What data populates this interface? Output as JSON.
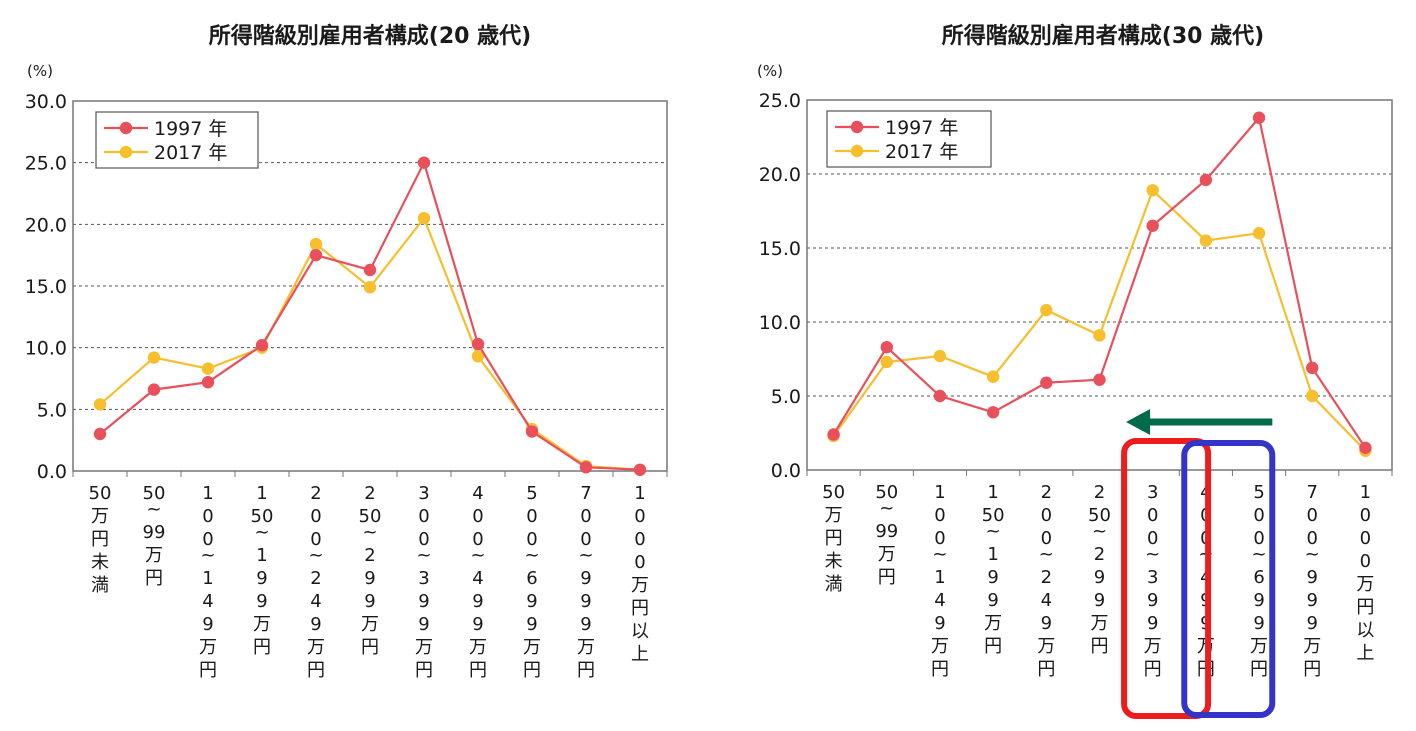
{
  "colors": {
    "series_1997": "#e8505b",
    "series_2017": "#f7be2e",
    "arrow": "#006b4a",
    "highlight_red": "#ee1c1c",
    "highlight_blue": "#3434c8",
    "gridline": "#555555"
  },
  "chart_data": [
    {
      "type": "line",
      "title": "所得階級別雇用者構成(20 歳代)",
      "unit": "(%)",
      "ylim": [
        0,
        30
      ],
      "yticks": [
        "0.0",
        "5.0",
        "10.0",
        "15.0",
        "20.0",
        "25.0",
        "30.0"
      ],
      "grid": true,
      "legend_position": "top-left",
      "categories": [
        "50万円未満",
        "50~99万円",
        "100~149万円",
        "150~199万円",
        "200~249万円",
        "250~299万円",
        "300~399万円",
        "400~499万円",
        "500~699万円",
        "700~999万円",
        "1000万円以上"
      ],
      "series": [
        {
          "name": "1997 年",
          "values": [
            3.0,
            6.6,
            7.2,
            10.2,
            17.5,
            16.3,
            25.0,
            10.3,
            3.2,
            0.3,
            0.1
          ]
        },
        {
          "name": "2017 年",
          "values": [
            5.4,
            9.2,
            8.3,
            10.0,
            18.4,
            14.9,
            20.5,
            9.3,
            3.4,
            0.4,
            0.1
          ]
        }
      ]
    },
    {
      "type": "line",
      "title": "所得階級別雇用者構成(30 歳代)",
      "unit": "(%)",
      "ylim": [
        0,
        25
      ],
      "yticks": [
        "0.0",
        "5.0",
        "10.0",
        "15.0",
        "20.0",
        "25.0"
      ],
      "grid": true,
      "legend_position": "top-left",
      "categories": [
        "50万円未満",
        "50~99万円",
        "100~149万円",
        "150~199万円",
        "200~249万円",
        "250~299万円",
        "300~399万円",
        "400~499万円",
        "500~699万円",
        "700~999万円",
        "1000万円以上"
      ],
      "series": [
        {
          "name": "1997 年",
          "values": [
            2.4,
            8.3,
            5.0,
            3.9,
            5.9,
            6.1,
            16.5,
            19.6,
            23.8,
            6.9,
            1.5
          ]
        },
        {
          "name": "2017 年",
          "values": [
            2.3,
            7.3,
            7.7,
            6.3,
            10.8,
            9.1,
            18.9,
            15.5,
            16.0,
            5.0,
            1.3
          ]
        }
      ],
      "annotations": [
        {
          "kind": "arrow",
          "direction": "left",
          "color": "#006b4a"
        },
        {
          "kind": "highlight_box",
          "category": "300~399万円",
          "color": "#ee1c1c"
        },
        {
          "kind": "highlight_box",
          "category": "400~499万円",
          "color": "#3434c8"
        }
      ]
    }
  ]
}
